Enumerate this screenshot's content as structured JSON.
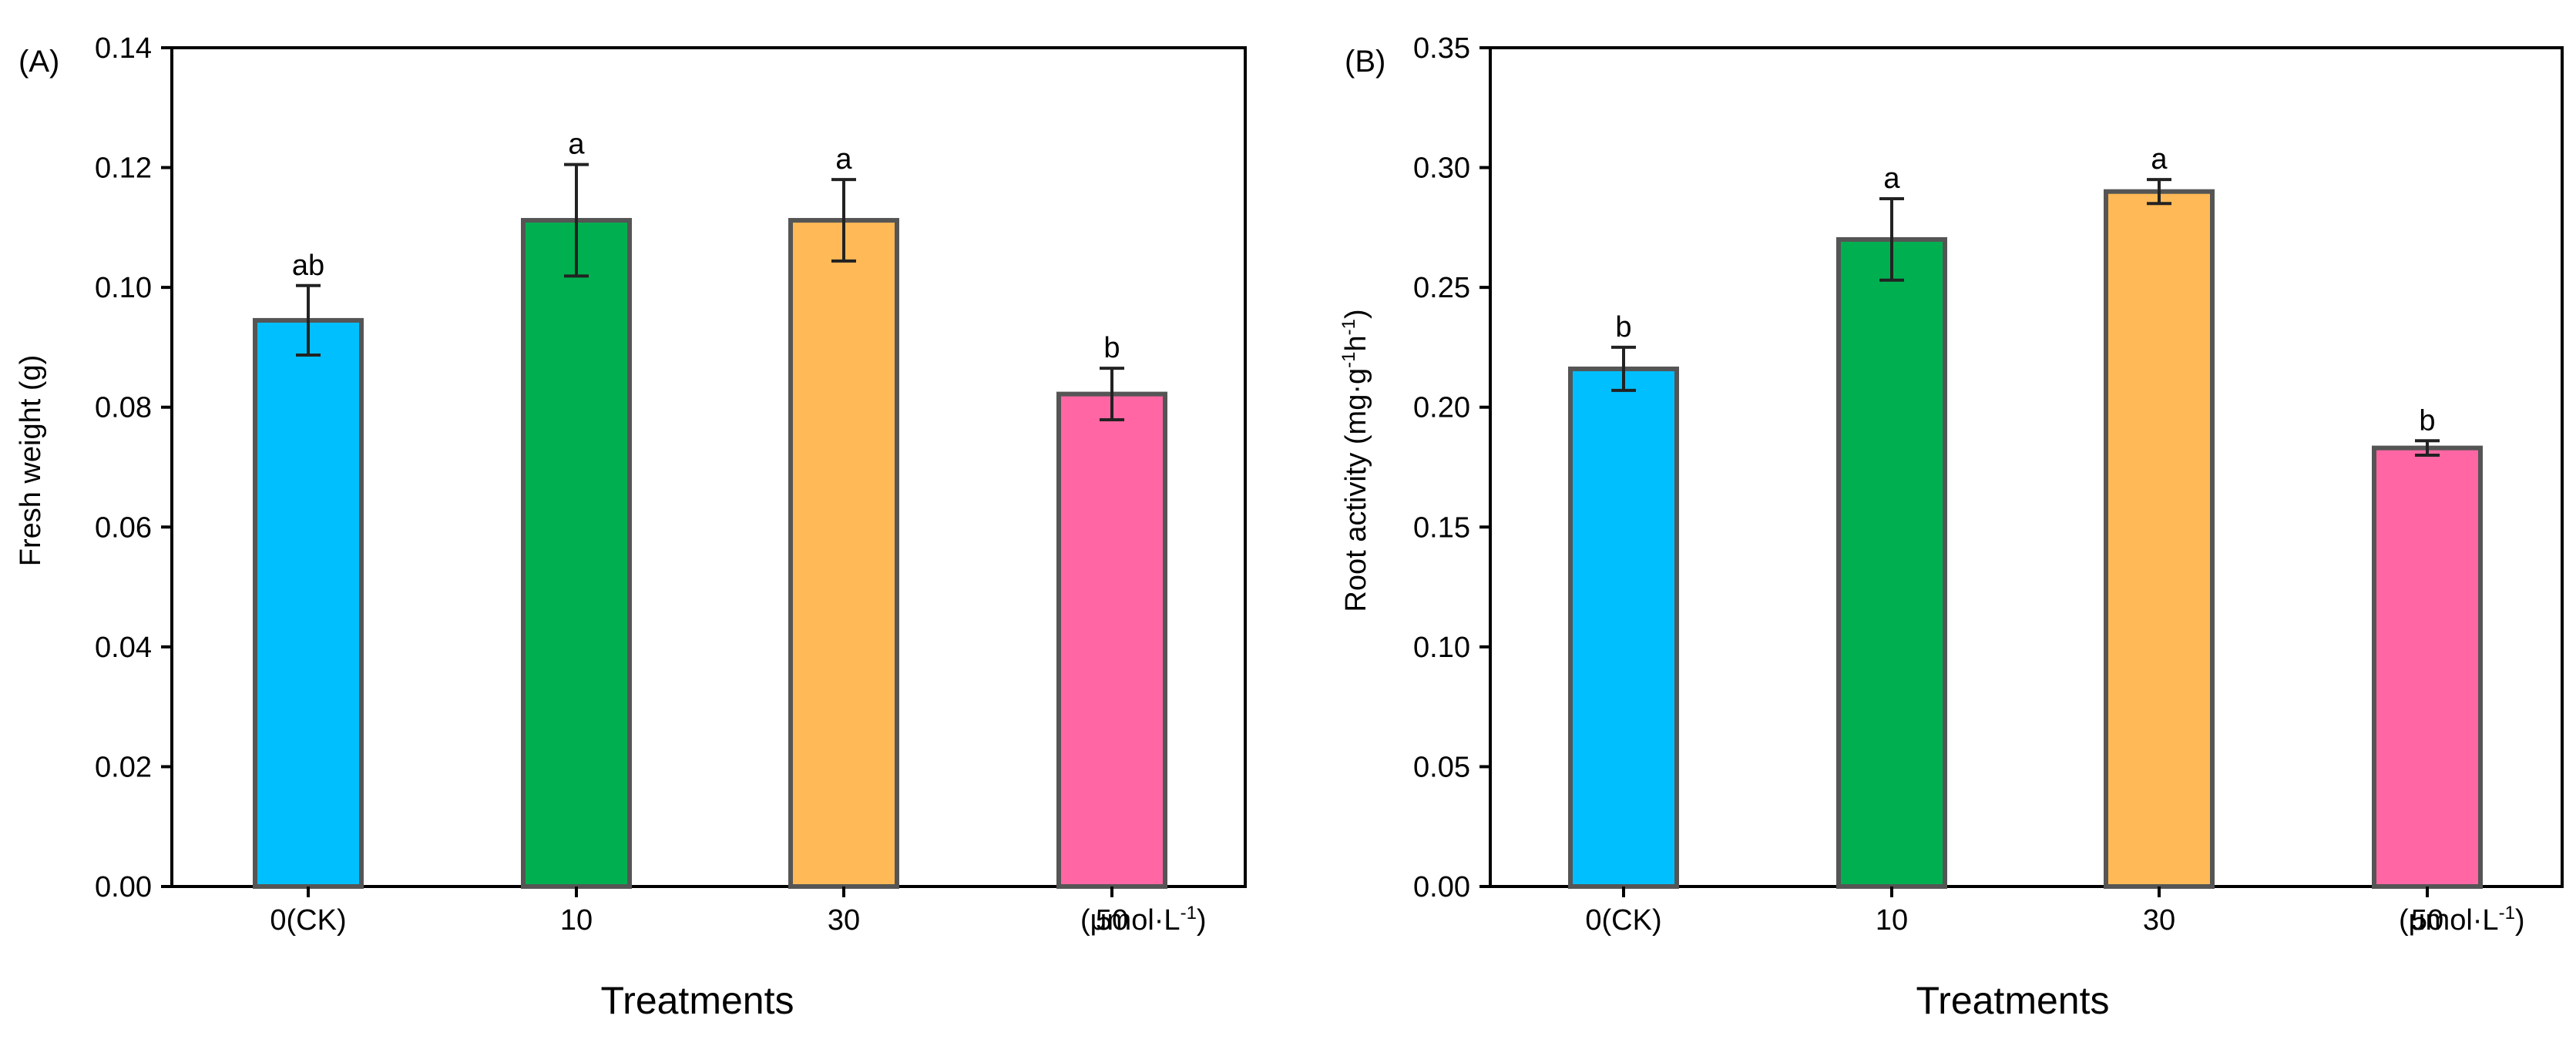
{
  "chart_data": [
    {
      "panel": "(A)",
      "type": "bar",
      "categories": [
        "0(CK)",
        "10",
        "30",
        "50"
      ],
      "unit_label": "(μmol·L",
      "unit_sup": "-1",
      "unit_close": ")",
      "values": [
        0.0945,
        0.1112,
        0.1112,
        0.0822
      ],
      "errors": [
        0.0058,
        0.0093,
        0.0068,
        0.0043
      ],
      "significance": [
        "ab",
        "a",
        "a",
        "b"
      ],
      "colors": [
        "#00BFFF",
        "#00B050",
        "#FFB957",
        "#FF66A3"
      ],
      "xlabel": "Treatments",
      "ylabel": "Fresh weight (g)",
      "ylim": [
        0,
        0.14
      ],
      "yticks": [
        0.0,
        0.02,
        0.04,
        0.06,
        0.08,
        0.1,
        0.12,
        0.14
      ],
      "ytick_labels": [
        "0.00",
        "0.02",
        "0.04",
        "0.06",
        "0.08",
        "0.10",
        "0.12",
        "0.14"
      ]
    },
    {
      "panel": "(B)",
      "type": "bar",
      "categories": [
        "0(CK)",
        "10",
        "30",
        "50"
      ],
      "unit_label": "(μmol·L",
      "unit_sup": "-1",
      "unit_close": ")",
      "values": [
        0.216,
        0.27,
        0.29,
        0.183
      ],
      "errors": [
        0.009,
        0.017,
        0.005,
        0.003
      ],
      "significance": [
        "b",
        "a",
        "a",
        "b"
      ],
      "colors": [
        "#00BFFF",
        "#00B050",
        "#FFB957",
        "#FF66A3"
      ],
      "xlabel": "Treatments",
      "ylabel_parts": {
        "a": "Root activity (mg·g",
        "sup1": "-1",
        "b": "h",
        "sup2": "-1",
        "c": ")"
      },
      "ylim": [
        0,
        0.35
      ],
      "yticks": [
        0.0,
        0.05,
        0.1,
        0.15,
        0.2,
        0.25,
        0.3,
        0.35
      ],
      "ytick_labels": [
        "0.00",
        "0.05",
        "0.10",
        "0.15",
        "0.20",
        "0.25",
        "0.30",
        "0.35"
      ]
    }
  ]
}
